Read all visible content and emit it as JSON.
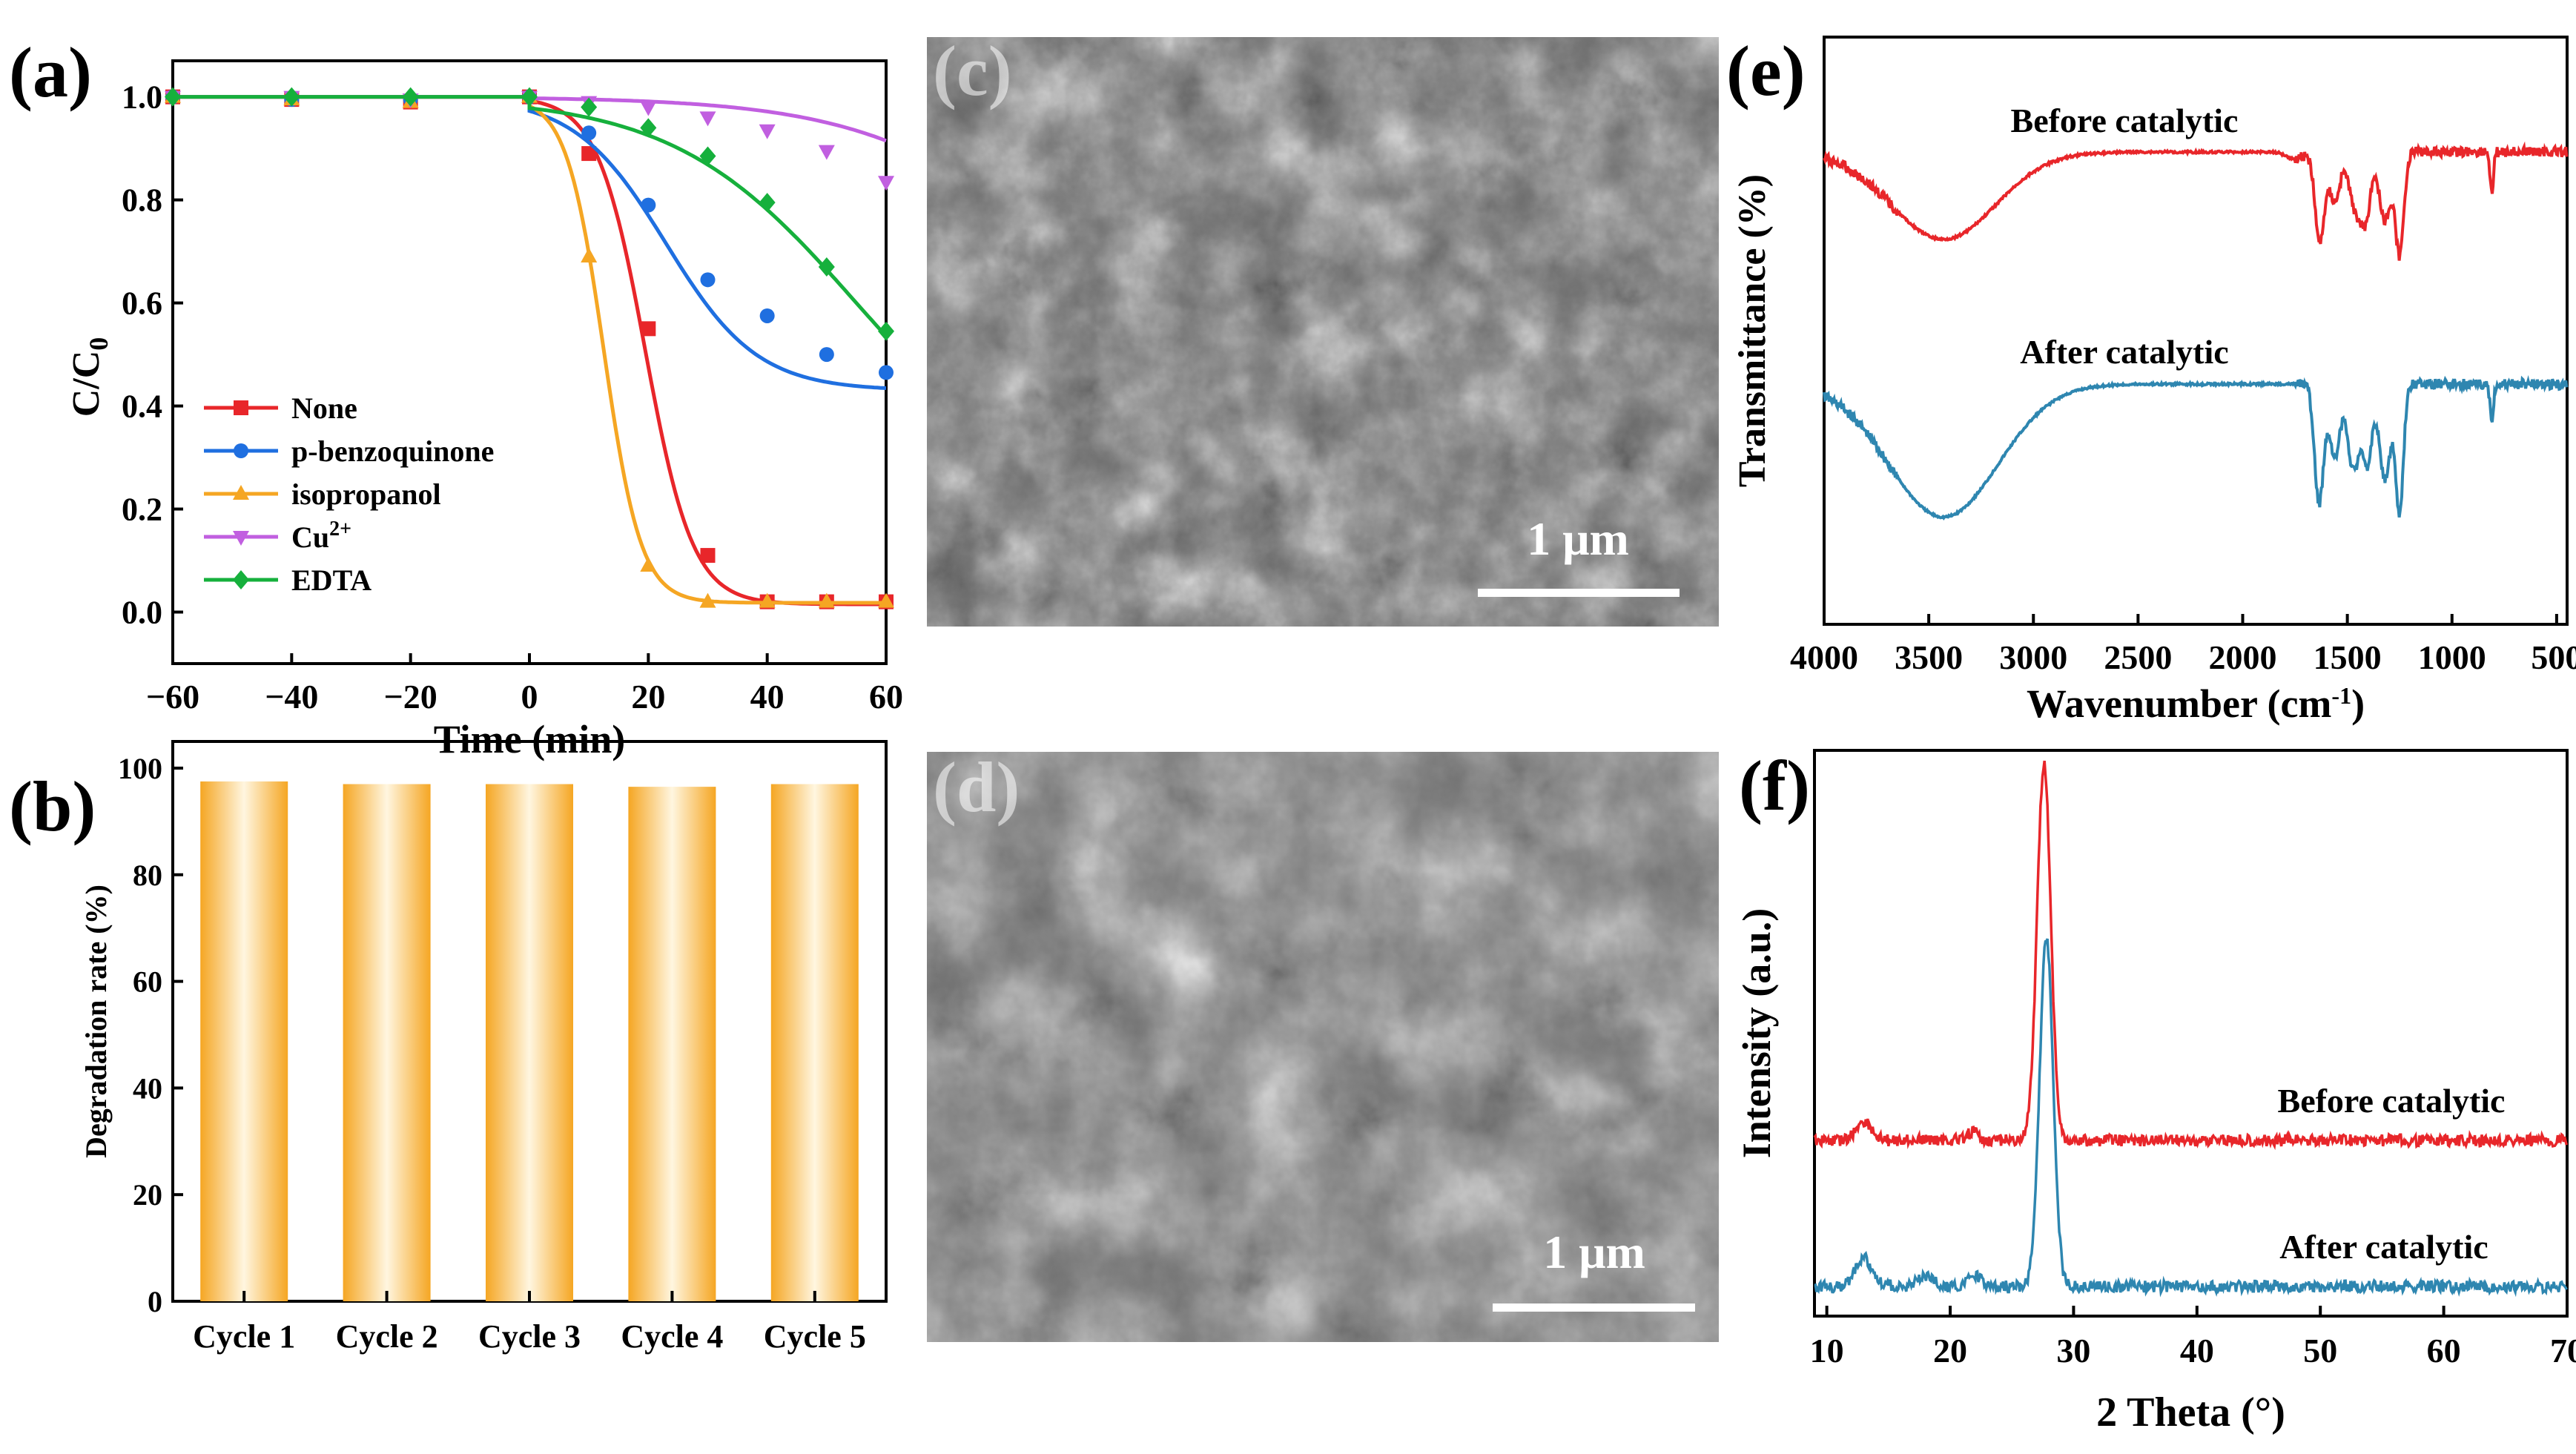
{
  "panel_labels": {
    "a": "(a)",
    "b": "(b)",
    "c": "(c)",
    "d": "(d)",
    "e": "(e)",
    "f": "(f)"
  },
  "sem": {
    "c_scalebar": "1 μm",
    "d_scalebar": "1 μm"
  },
  "chart_data": [
    {
      "panel": "a",
      "type": "line",
      "xlabel": "Time (min)",
      "ylabel_main": "C/C",
      "ylabel_sub": "0",
      "xlim": [
        -60,
        60
      ],
      "ylim": [
        -0.1,
        1.07
      ],
      "xticks": [
        -60,
        -40,
        -20,
        0,
        20,
        40,
        60
      ],
      "xtick_labels": [
        "−60",
        "−40",
        "−20",
        "0",
        "20",
        "40",
        "60"
      ],
      "yticks": [
        0.0,
        0.2,
        0.4,
        0.6,
        0.8,
        1.0
      ],
      "ytick_labels": [
        "0.0",
        "0.2",
        "0.4",
        "0.6",
        "0.8",
        "1.0"
      ],
      "legend_position": "bottom-left",
      "series": [
        {
          "name": "None",
          "legend_main": "None",
          "legend_sup": "",
          "color": "#e8262a",
          "marker": "square",
          "x": [
            -60,
            -40,
            -20,
            0,
            10,
            20,
            30,
            40,
            50,
            60
          ],
          "y": [
            1.0,
            0.995,
            0.99,
            1.0,
            0.89,
            0.55,
            0.11,
            0.02,
            0.02,
            0.02
          ],
          "fit": {
            "top": 1.0,
            "bottom": 0.015,
            "x0": 19.5,
            "k": 0.25
          }
        },
        {
          "name": "p-benzoquinone",
          "legend_main": "p-benzoquinone",
          "legend_sup": "",
          "color": "#1f6fe0",
          "marker": "circle",
          "x": [
            -60,
            -40,
            -20,
            0,
            10,
            20,
            30,
            40,
            50,
            60
          ],
          "y": [
            1.0,
            0.995,
            0.995,
            1.0,
            0.93,
            0.79,
            0.645,
            0.575,
            0.5,
            0.465
          ],
          "fit": {
            "top": 1.0,
            "bottom": 0.43,
            "x0": 23,
            "k": 0.13
          }
        },
        {
          "name": "isopropanol",
          "legend_main": "isopropanol",
          "legend_sup": "",
          "color": "#f5a623",
          "marker": "triangle-up",
          "x": [
            -60,
            -40,
            -20,
            0,
            10,
            20,
            30,
            40,
            50,
            60
          ],
          "y": [
            1.0,
            0.995,
            0.99,
            1.0,
            0.69,
            0.09,
            0.02,
            0.02,
            0.02,
            0.02
          ],
          "fit": {
            "top": 1.0,
            "bottom": 0.018,
            "x0": 12.5,
            "k": 0.32
          }
        },
        {
          "name": "Cu2+",
          "legend_main": "Cu",
          "legend_sup": "2+",
          "color": "#c15fe0",
          "marker": "triangle-down",
          "x": [
            -60,
            -40,
            -20,
            0,
            10,
            20,
            30,
            40,
            50,
            60
          ],
          "y": [
            1.0,
            1.0,
            0.995,
            1.0,
            0.99,
            0.98,
            0.96,
            0.935,
            0.895,
            0.835
          ],
          "fit": {
            "top": 1.0,
            "bottom": 0.4,
            "x0": 90,
            "k": 0.06
          }
        },
        {
          "name": "EDTA",
          "legend_main": "EDTA",
          "legend_sup": "",
          "color": "#16b03c",
          "marker": "diamond",
          "x": [
            -60,
            -40,
            -20,
            0,
            10,
            20,
            30,
            40,
            50,
            60
          ],
          "y": [
            1.0,
            1.0,
            1.0,
            1.0,
            0.98,
            0.94,
            0.885,
            0.795,
            0.67,
            0.545
          ],
          "fit": {
            "top": 1.0,
            "bottom": 0.2,
            "x0": 55,
            "k": 0.065
          }
        }
      ]
    },
    {
      "panel": "b",
      "type": "bar",
      "ylabel": "Degradation rate (%)",
      "ylim": [
        0,
        105
      ],
      "yticks": [
        0,
        20,
        40,
        60,
        80,
        100
      ],
      "ytick_labels": [
        "0",
        "20",
        "40",
        "60",
        "80",
        "100"
      ],
      "categories": [
        "Cycle 1",
        "Cycle 2",
        "Cycle 3",
        "Cycle 4",
        "Cycle 5"
      ],
      "values": [
        97.5,
        97.0,
        97.0,
        96.5,
        97.0
      ],
      "bar_color": "#f5a623"
    },
    {
      "panel": "e",
      "type": "line",
      "xlabel_main": "Wavenumber (cm",
      "xlabel_sup": "-1",
      "xlabel_end": ")",
      "ylabel": "Transmittance (%)",
      "xlim": [
        4000,
        450
      ],
      "xticks": [
        4000,
        3500,
        3000,
        2500,
        2000,
        1500,
        1000,
        500
      ],
      "xtick_labels": [
        "4000",
        "3500",
        "3000",
        "2500",
        "2000",
        "1500",
        "1000",
        "500"
      ],
      "yticks_shown": false,
      "series": [
        {
          "name": "Before catalytic",
          "label": "Before catalytic",
          "color": "#e8262a",
          "offset": 0,
          "bands": [
            [
              3430,
              0.62,
              250
            ],
            [
              1632,
              0.65,
              22
            ],
            [
              1560,
              0.35,
              25
            ],
            [
              1460,
              0.42,
              30
            ],
            [
              1410,
              0.4,
              22
            ],
            [
              1320,
              0.48,
              28
            ],
            [
              1250,
              0.72,
              20
            ],
            [
              810,
              0.3,
              8
            ],
            [
              1750,
              0.05,
              40
            ]
          ]
        },
        {
          "name": "After catalytic",
          "label": "After catalytic",
          "color": "#2e86b0",
          "offset": 1,
          "bands": [
            [
              3430,
              0.78,
              260
            ],
            [
              1635,
              0.7,
              22
            ],
            [
              1560,
              0.42,
              25
            ],
            [
              1470,
              0.5,
              28
            ],
            [
              1405,
              0.45,
              22
            ],
            [
              1320,
              0.55,
              28
            ],
            [
              1250,
              0.75,
              18
            ],
            [
              810,
              0.22,
              8
            ]
          ]
        }
      ]
    },
    {
      "panel": "f",
      "type": "line",
      "xlabel": "2 Theta (°)",
      "ylabel": "Intensity (a.u.)",
      "xlim": [
        9,
        70
      ],
      "xticks": [
        10,
        20,
        30,
        40,
        50,
        60,
        70
      ],
      "xtick_labels": [
        "10",
        "20",
        "30",
        "40",
        "50",
        "60",
        "70"
      ],
      "yticks_shown": false,
      "series": [
        {
          "name": "Before catalytic",
          "label": "Before catalytic",
          "color": "#e8262a",
          "offset": 1,
          "peaks": [
            [
              27.6,
              1.0,
              0.55
            ],
            [
              13.0,
              0.05,
              0.6
            ],
            [
              21.8,
              0.02,
              0.5
            ]
          ]
        },
        {
          "name": "After catalytic",
          "label": "After catalytic",
          "color": "#2e86b0",
          "offset": 0,
          "peaks": [
            [
              27.8,
              1.0,
              0.55
            ],
            [
              13.0,
              0.08,
              0.7
            ],
            [
              18.0,
              0.03,
              0.6
            ],
            [
              22.0,
              0.03,
              0.6
            ]
          ]
        }
      ]
    }
  ]
}
